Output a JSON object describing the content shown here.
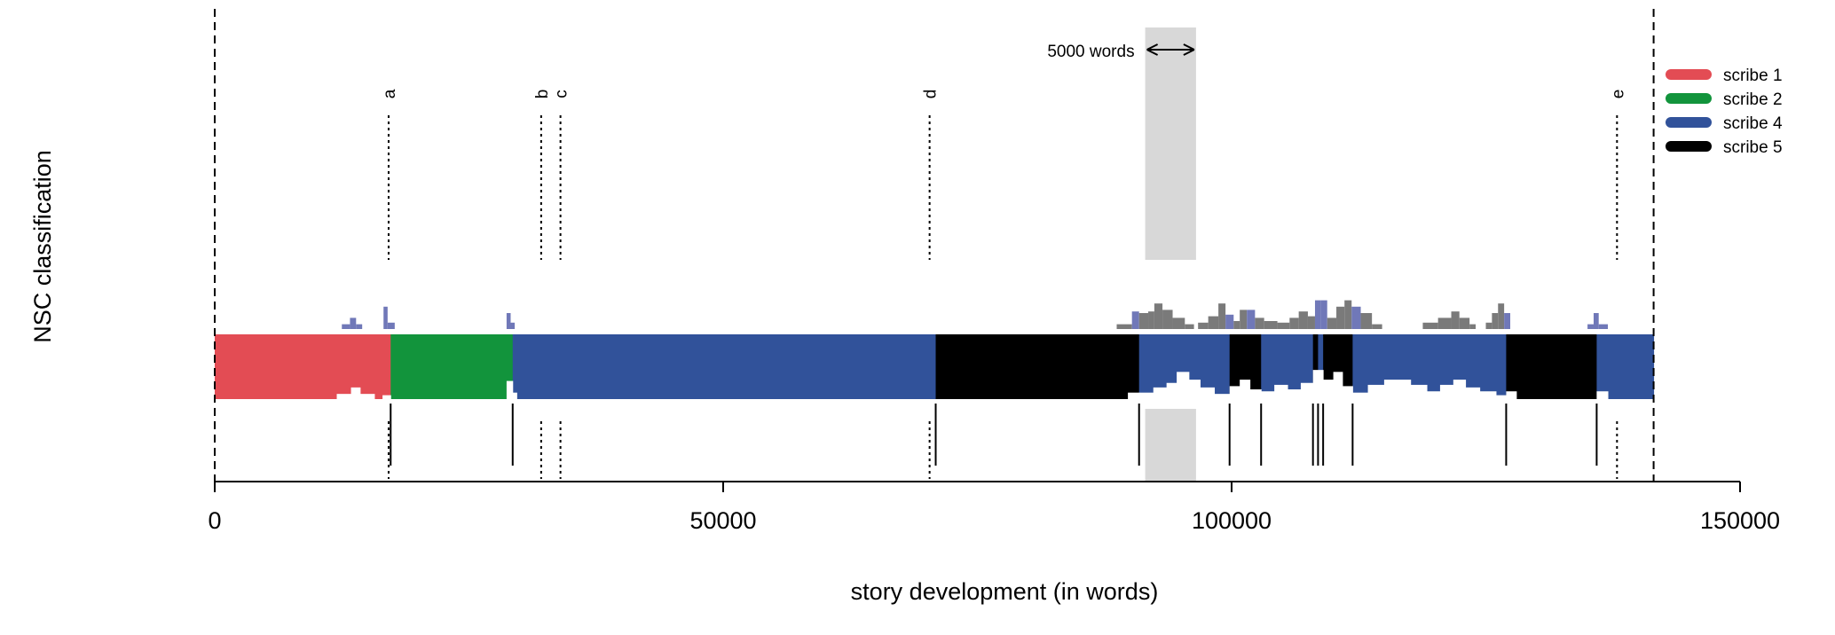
{
  "chart_data": {
    "type": "area",
    "xlabel": "story development (in words)",
    "ylabel": "NSC classification",
    "xlim": [
      0,
      150000
    ],
    "x_ticks": [
      0,
      50000,
      100000,
      150000
    ],
    "text_end": 141500,
    "legend_position": "top-right",
    "series": [
      {
        "name": "scribe 1",
        "color": "#e34c54"
      },
      {
        "name": "scribe 2",
        "color": "#12943c"
      },
      {
        "name": "scribe 4",
        "color": "#31529a"
      },
      {
        "name": "scribe 5",
        "color": "#000000"
      }
    ],
    "segments": [
      {
        "scribe": "scribe 1",
        "start": 0,
        "end": 17300
      },
      {
        "scribe": "scribe 2",
        "start": 17300,
        "end": 29300
      },
      {
        "scribe": "scribe 4",
        "start": 29300,
        "end": 70900
      },
      {
        "scribe": "scribe 5",
        "start": 70900,
        "end": 90900
      },
      {
        "scribe": "scribe 4",
        "start": 90900,
        "end": 99800
      },
      {
        "scribe": "scribe 5",
        "start": 99800,
        "end": 102900
      },
      {
        "scribe": "scribe 4",
        "start": 102900,
        "end": 108000
      },
      {
        "scribe": "scribe 5",
        "start": 108000,
        "end": 108500
      },
      {
        "scribe": "scribe 4",
        "start": 108500,
        "end": 109000
      },
      {
        "scribe": "scribe 5",
        "start": 109000,
        "end": 111900
      },
      {
        "scribe": "scribe 4",
        "start": 111900,
        "end": 127000
      },
      {
        "scribe": "scribe 5",
        "start": 127000,
        "end": 135900
      },
      {
        "scribe": "scribe 4",
        "start": 135900,
        "end": 141500
      }
    ],
    "boundaries": [
      17300,
      29300,
      70900,
      90900,
      99800,
      102900,
      108000,
      108500,
      109000,
      111900,
      127000,
      135900
    ],
    "markers": [
      {
        "label": "a",
        "x": 17100
      },
      {
        "label": "b",
        "x": 32100
      },
      {
        "label": "c",
        "x": 34000
      },
      {
        "label": "d",
        "x": 70300
      },
      {
        "label": "e",
        "x": 137900
      }
    ],
    "window": {
      "start": 91500,
      "end": 96500,
      "label": "5000 words"
    },
    "dips": [
      {
        "start": 12000,
        "end": 13400,
        "depth": 0.08
      },
      {
        "start": 13400,
        "end": 14300,
        "depth": 0.18
      },
      {
        "start": 14300,
        "end": 15700,
        "depth": 0.08
      },
      {
        "start": 16500,
        "end": 17300,
        "depth": 0.06
      },
      {
        "start": 28700,
        "end": 29300,
        "depth": 0.28
      },
      {
        "start": 29300,
        "end": 29700,
        "depth": 0.1
      },
      {
        "start": 89800,
        "end": 90900,
        "depth": 0.1
      },
      {
        "start": 90900,
        "end": 92300,
        "depth": 0.1
      },
      {
        "start": 92300,
        "end": 93600,
        "depth": 0.18
      },
      {
        "start": 93600,
        "end": 94600,
        "depth": 0.25
      },
      {
        "start": 94600,
        "end": 95800,
        "depth": 0.42
      },
      {
        "start": 95800,
        "end": 96900,
        "depth": 0.3
      },
      {
        "start": 96900,
        "end": 98300,
        "depth": 0.18
      },
      {
        "start": 98300,
        "end": 99800,
        "depth": 0.08
      },
      {
        "start": 99800,
        "end": 100800,
        "depth": 0.2
      },
      {
        "start": 100800,
        "end": 101800,
        "depth": 0.3
      },
      {
        "start": 101800,
        "end": 102900,
        "depth": 0.15
      },
      {
        "start": 102900,
        "end": 104200,
        "depth": 0.12
      },
      {
        "start": 104200,
        "end": 105500,
        "depth": 0.22
      },
      {
        "start": 105500,
        "end": 106800,
        "depth": 0.15
      },
      {
        "start": 106800,
        "end": 108000,
        "depth": 0.25
      },
      {
        "start": 108000,
        "end": 109000,
        "depth": 0.45
      },
      {
        "start": 109000,
        "end": 110000,
        "depth": 0.3
      },
      {
        "start": 110000,
        "end": 110900,
        "depth": 0.42
      },
      {
        "start": 110900,
        "end": 111900,
        "depth": 0.2
      },
      {
        "start": 111900,
        "end": 113400,
        "depth": 0.1
      },
      {
        "start": 113400,
        "end": 115000,
        "depth": 0.22
      },
      {
        "start": 115000,
        "end": 117600,
        "depth": 0.3
      },
      {
        "start": 117600,
        "end": 119200,
        "depth": 0.22
      },
      {
        "start": 119200,
        "end": 120500,
        "depth": 0.12
      },
      {
        "start": 120500,
        "end": 121800,
        "depth": 0.22
      },
      {
        "start": 121800,
        "end": 123000,
        "depth": 0.3
      },
      {
        "start": 123000,
        "end": 124400,
        "depth": 0.18
      },
      {
        "start": 124400,
        "end": 126000,
        "depth": 0.12
      },
      {
        "start": 126000,
        "end": 127000,
        "depth": 0.06
      },
      {
        "start": 127000,
        "end": 128000,
        "depth": 0.12
      },
      {
        "start": 135900,
        "end": 137000,
        "depth": 0.12
      }
    ],
    "blips": [
      {
        "start": 12500,
        "end": 13300,
        "height": 0.09,
        "color": "#7078b8"
      },
      {
        "start": 13300,
        "end": 13900,
        "height": 0.21,
        "color": "#7078b8"
      },
      {
        "start": 13900,
        "end": 14500,
        "height": 0.09,
        "color": "#7078b8"
      },
      {
        "start": 16600,
        "end": 17000,
        "height": 0.42,
        "color": "#7078b8"
      },
      {
        "start": 17000,
        "end": 17700,
        "height": 0.12,
        "color": "#7078b8"
      },
      {
        "start": 28700,
        "end": 29100,
        "height": 0.3,
        "color": "#7078b8"
      },
      {
        "start": 29100,
        "end": 29500,
        "height": 0.12,
        "color": "#7078b8"
      },
      {
        "start": 88700,
        "end": 90200,
        "height": 0.09,
        "color": "#7a7a7a"
      },
      {
        "start": 90200,
        "end": 90900,
        "height": 0.33,
        "color": "#7078b8"
      },
      {
        "start": 90900,
        "end": 91800,
        "height": 0.3,
        "color": "#7a7a7a"
      },
      {
        "start": 91800,
        "end": 92400,
        "height": 0.33,
        "color": "#7a7a7a"
      },
      {
        "start": 92400,
        "end": 93200,
        "height": 0.48,
        "color": "#7a7a7a"
      },
      {
        "start": 93200,
        "end": 94200,
        "height": 0.36,
        "color": "#7a7a7a"
      },
      {
        "start": 94200,
        "end": 95400,
        "height": 0.21,
        "color": "#7a7a7a"
      },
      {
        "start": 95400,
        "end": 96300,
        "height": 0.09,
        "color": "#7a7a7a"
      },
      {
        "start": 96700,
        "end": 97700,
        "height": 0.12,
        "color": "#7a7a7a"
      },
      {
        "start": 97700,
        "end": 98700,
        "height": 0.24,
        "color": "#7a7a7a"
      },
      {
        "start": 98700,
        "end": 99400,
        "height": 0.48,
        "color": "#7a7a7a"
      },
      {
        "start": 99400,
        "end": 100200,
        "height": 0.27,
        "color": "#7078b8"
      },
      {
        "start": 100200,
        "end": 100800,
        "height": 0.15,
        "color": "#7a7a7a"
      },
      {
        "start": 100800,
        "end": 101500,
        "height": 0.36,
        "color": "#7a7a7a"
      },
      {
        "start": 101500,
        "end": 102300,
        "height": 0.36,
        "color": "#7078b8"
      },
      {
        "start": 102300,
        "end": 103200,
        "height": 0.21,
        "color": "#7a7a7a"
      },
      {
        "start": 103200,
        "end": 104500,
        "height": 0.15,
        "color": "#7a7a7a"
      },
      {
        "start": 104500,
        "end": 105700,
        "height": 0.12,
        "color": "#7a7a7a"
      },
      {
        "start": 105700,
        "end": 106600,
        "height": 0.21,
        "color": "#7a7a7a"
      },
      {
        "start": 106600,
        "end": 107500,
        "height": 0.33,
        "color": "#7a7a7a"
      },
      {
        "start": 107500,
        "end": 108200,
        "height": 0.24,
        "color": "#7a7a7a"
      },
      {
        "start": 108200,
        "end": 108800,
        "height": 0.54,
        "color": "#7078b8"
      },
      {
        "start": 108800,
        "end": 109400,
        "height": 0.54,
        "color": "#7078b8"
      },
      {
        "start": 109400,
        "end": 110300,
        "height": 0.21,
        "color": "#7a7a7a"
      },
      {
        "start": 110300,
        "end": 111100,
        "height": 0.42,
        "color": "#7a7a7a"
      },
      {
        "start": 111100,
        "end": 111800,
        "height": 0.54,
        "color": "#7a7a7a"
      },
      {
        "start": 111800,
        "end": 112700,
        "height": 0.42,
        "color": "#7078b8"
      },
      {
        "start": 112700,
        "end": 113800,
        "height": 0.3,
        "color": "#7a7a7a"
      },
      {
        "start": 113800,
        "end": 114800,
        "height": 0.09,
        "color": "#7a7a7a"
      },
      {
        "start": 118800,
        "end": 120300,
        "height": 0.12,
        "color": "#7a7a7a"
      },
      {
        "start": 120300,
        "end": 121600,
        "height": 0.21,
        "color": "#7a7a7a"
      },
      {
        "start": 121600,
        "end": 122400,
        "height": 0.33,
        "color": "#7a7a7a"
      },
      {
        "start": 122400,
        "end": 123400,
        "height": 0.21,
        "color": "#7a7a7a"
      },
      {
        "start": 123400,
        "end": 124000,
        "height": 0.09,
        "color": "#7a7a7a"
      },
      {
        "start": 125000,
        "end": 125600,
        "height": 0.12,
        "color": "#7a7a7a"
      },
      {
        "start": 125600,
        "end": 126200,
        "height": 0.3,
        "color": "#7a7a7a"
      },
      {
        "start": 126200,
        "end": 126800,
        "height": 0.48,
        "color": "#7a7a7a"
      },
      {
        "start": 126800,
        "end": 127400,
        "height": 0.3,
        "color": "#7078b8"
      },
      {
        "start": 135000,
        "end": 135600,
        "height": 0.09,
        "color": "#7078b8"
      },
      {
        "start": 135600,
        "end": 136100,
        "height": 0.3,
        "color": "#7078b8"
      },
      {
        "start": 136100,
        "end": 137000,
        "height": 0.09,
        "color": "#7078b8"
      }
    ]
  }
}
